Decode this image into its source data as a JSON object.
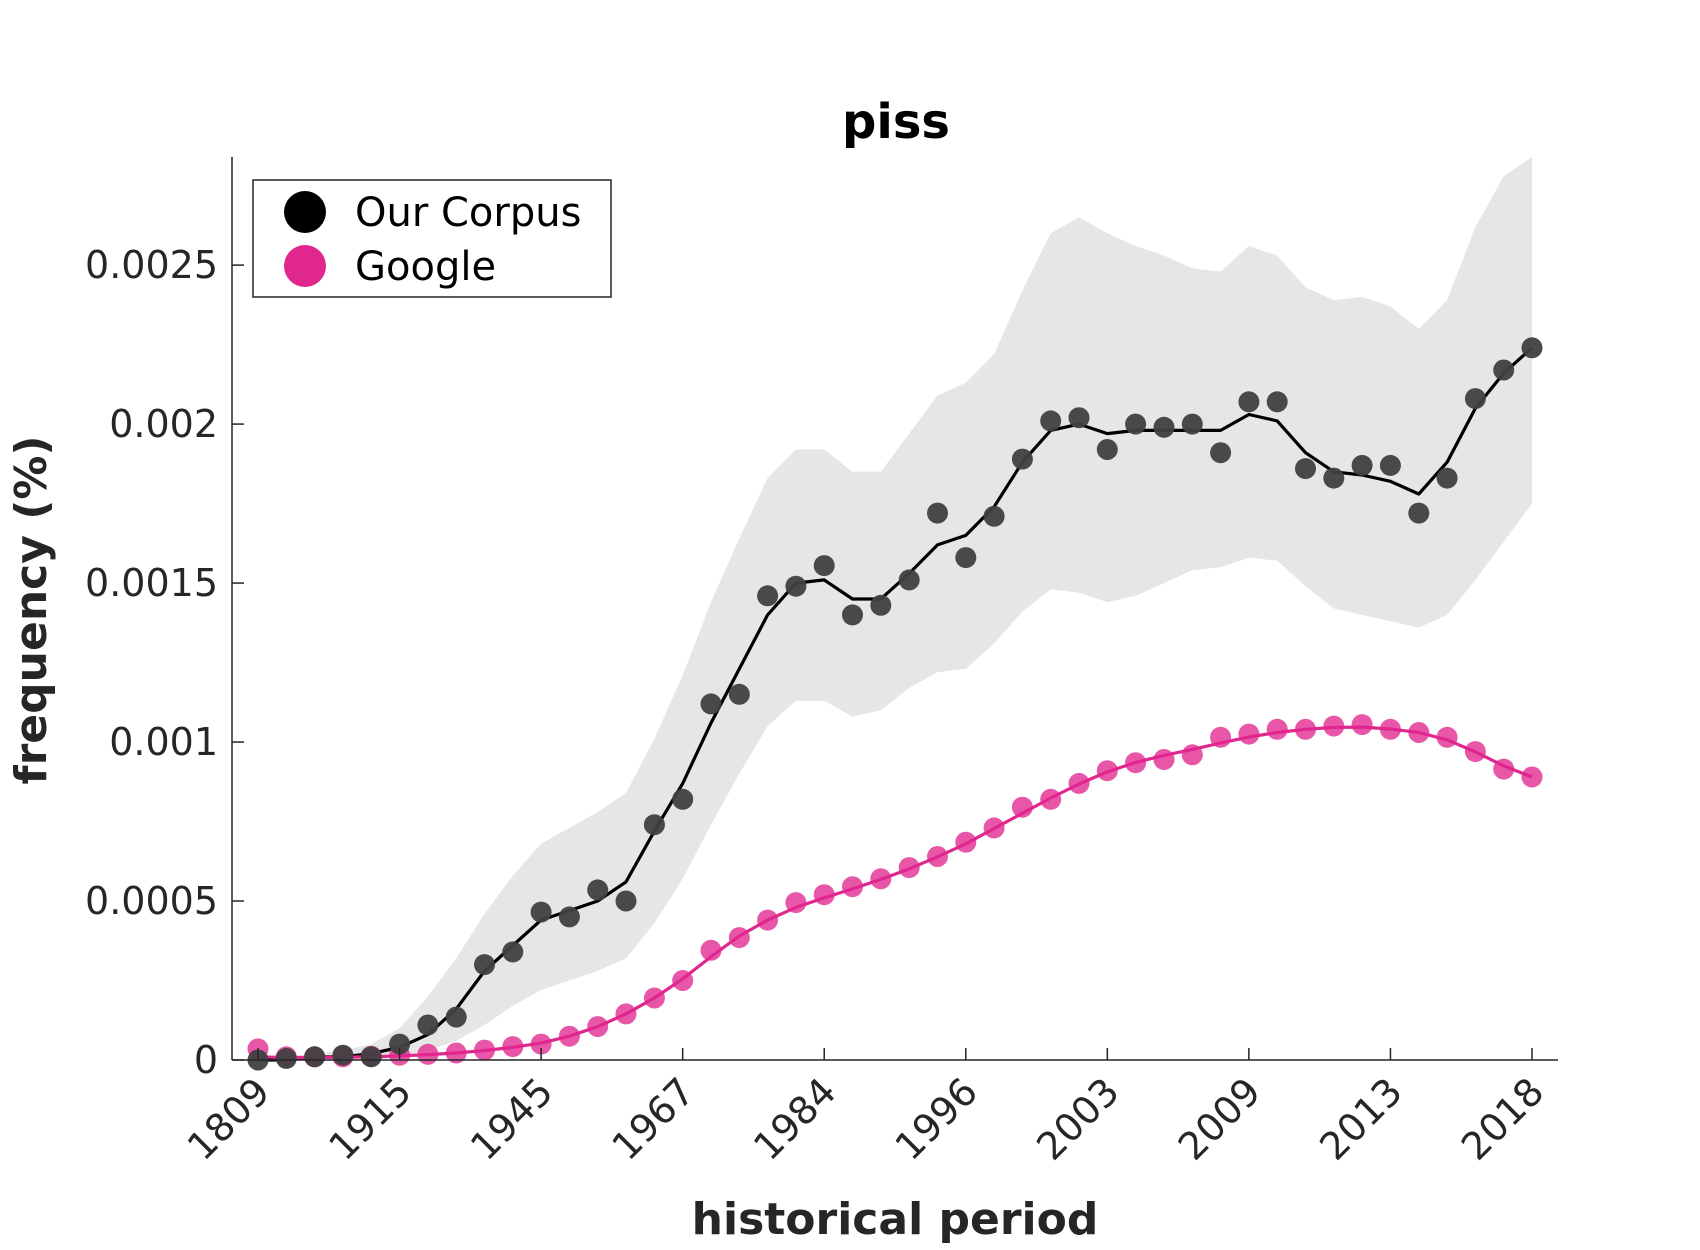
{
  "chart_data": {
    "type": "line",
    "title": "piss",
    "xlabel": "historical period",
    "ylabel": "frequency (%)",
    "x_tick_labels": [
      "1809",
      "1915",
      "1945",
      "1967",
      "1984",
      "1996",
      "2003",
      "2009",
      "2013",
      "2018"
    ],
    "y_ticks": [
      {
        "value": 0,
        "label": "0"
      },
      {
        "value": 0.0005,
        "label": "0.0005"
      },
      {
        "value": 0.001,
        "label": "0.001"
      },
      {
        "value": 0.0015,
        "label": "0.0015"
      },
      {
        "value": 0.002,
        "label": "0.002"
      },
      {
        "value": 0.0025,
        "label": "0.0025"
      }
    ],
    "ylim": [
      0,
      0.00284
    ],
    "grid": false,
    "legend_position": "top-left",
    "colors": {
      "our_corpus": "#000000",
      "our_corpus_dots": "#404040",
      "google": "#e0278e",
      "band": "#e6e6e6"
    },
    "series": [
      {
        "name": "Our Corpus",
        "points": [
          0.0,
          5e-06,
          1e-05,
          1.5e-05,
          1e-05,
          5e-05,
          0.00011,
          0.000135,
          0.0003,
          0.00034,
          0.000465,
          0.00045,
          0.000535,
          0.0005,
          0.00074,
          0.00082,
          0.00112,
          0.00115,
          0.00146,
          0.00149,
          0.001555,
          0.0014,
          0.00143,
          0.00151,
          0.00172,
          0.00158,
          0.00171,
          0.00189,
          0.00201,
          0.00202,
          0.00192,
          0.002,
          0.00199,
          0.002,
          0.00191,
          0.00207,
          0.00207,
          0.00186,
          0.00183,
          0.00187,
          0.00187,
          0.00172,
          0.00183,
          0.00208,
          0.00217,
          0.00224
        ],
        "smoothed": [
          0.0,
          0.0,
          1e-05,
          1e-05,
          2e-05,
          4e-05,
          8e-05,
          0.00016,
          0.00028,
          0.00036,
          0.00044,
          0.00047,
          0.0005,
          0.00056,
          0.00072,
          0.00087,
          0.00106,
          0.00123,
          0.0014,
          0.0015,
          0.00151,
          0.00145,
          0.00145,
          0.00153,
          0.00162,
          0.00165,
          0.00174,
          0.00188,
          0.00198,
          0.002,
          0.00197,
          0.00198,
          0.00198,
          0.00198,
          0.00198,
          0.00203,
          0.00201,
          0.00191,
          0.00185,
          0.00184,
          0.00182,
          0.00178,
          0.00188,
          0.00205,
          0.00216,
          0.00224
        ],
        "band_upper": [
          0.0,
          1e-05,
          2e-05,
          3e-05,
          5e-05,
          0.0001,
          0.0002,
          0.00032,
          0.00046,
          0.00058,
          0.00068,
          0.00073,
          0.00078,
          0.00084,
          0.00101,
          0.00121,
          0.00144,
          0.00164,
          0.00183,
          0.00192,
          0.00192,
          0.00185,
          0.00185,
          0.00197,
          0.00209,
          0.00213,
          0.00222,
          0.00242,
          0.0026,
          0.00265,
          0.0026,
          0.00256,
          0.00253,
          0.00249,
          0.00248,
          0.00256,
          0.00253,
          0.00243,
          0.00239,
          0.0024,
          0.00237,
          0.0023,
          0.00239,
          0.00262,
          0.00278,
          0.00284
        ],
        "band_lower": [
          0.0,
          0.0,
          0.0,
          0.0,
          0.0,
          1e-05,
          3e-05,
          6e-05,
          0.00011,
          0.00017,
          0.00022,
          0.00025,
          0.00028,
          0.00032,
          0.00043,
          0.00057,
          0.00074,
          0.0009,
          0.00105,
          0.00113,
          0.00113,
          0.00108,
          0.0011,
          0.00117,
          0.00122,
          0.00123,
          0.00131,
          0.00141,
          0.00148,
          0.00147,
          0.00144,
          0.00146,
          0.0015,
          0.00154,
          0.00155,
          0.00158,
          0.00157,
          0.00149,
          0.00142,
          0.0014,
          0.00138,
          0.00136,
          0.0014,
          0.00151,
          0.00163,
          0.00175
        ]
      },
      {
        "name": "Google",
        "points": [
          3.5e-05,
          1e-05,
          1e-05,
          1e-05,
          1.2e-05,
          1.5e-05,
          1.8e-05,
          2.2e-05,
          3.1e-05,
          4.2e-05,
          5e-05,
          7.5e-05,
          0.000105,
          0.000145,
          0.000195,
          0.00025,
          0.000345,
          0.000385,
          0.00044,
          0.000495,
          0.00052,
          0.000545,
          0.00057,
          0.000605,
          0.00064,
          0.000685,
          0.00073,
          0.000795,
          0.00082,
          0.00087,
          0.00091,
          0.000935,
          0.000945,
          0.00096,
          0.001015,
          0.001025,
          0.00104,
          0.00104,
          0.00105,
          0.001055,
          0.00104,
          0.00103,
          0.001015,
          0.00097,
          0.000915,
          0.00089
        ],
        "smoothed": [
          1e-05,
          8e-06,
          8e-06,
          9e-06,
          1e-05,
          1.3e-05,
          1.7e-05,
          2.2e-05,
          3e-05,
          4e-05,
          5.3e-05,
          7.5e-05,
          0.000105,
          0.000145,
          0.000195,
          0.000255,
          0.000325,
          0.00039,
          0.00044,
          0.00048,
          0.00051,
          0.000538,
          0.000568,
          0.000601,
          0.000639,
          0.00068,
          0.000728,
          0.000776,
          0.000824,
          0.000868,
          0.000906,
          0.000936,
          0.000958,
          0.000977,
          0.000997,
          0.001016,
          0.00103,
          0.00104,
          0.001046,
          0.001047,
          0.001041,
          0.00103,
          0.001007,
          0.000969,
          0.000925,
          0.00089
        ]
      }
    ]
  }
}
